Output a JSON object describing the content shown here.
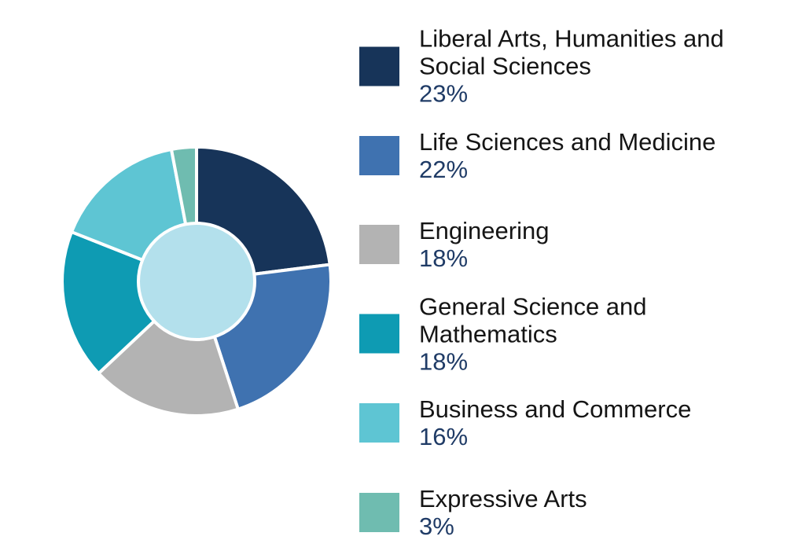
{
  "chart_data": {
    "type": "donut",
    "categories": [
      "Liberal Arts, Humanities and Social Sciences",
      "Life Sciences and Medicine",
      "Engineering",
      "General Science and Mathematics",
      "Business and Commerce",
      "Expressive Arts"
    ],
    "values": [
      23,
      22,
      18,
      18,
      16,
      3
    ],
    "value_labels": [
      "23%",
      "22%",
      "18%",
      "18%",
      "16%",
      "3%"
    ],
    "colors": [
      "#173459",
      "#3f72b0",
      "#b3b3b3",
      "#0e9bb3",
      "#5ec5d3",
      "#6fbcb0"
    ],
    "center_color": "#b3e0ec",
    "legend": "right"
  }
}
